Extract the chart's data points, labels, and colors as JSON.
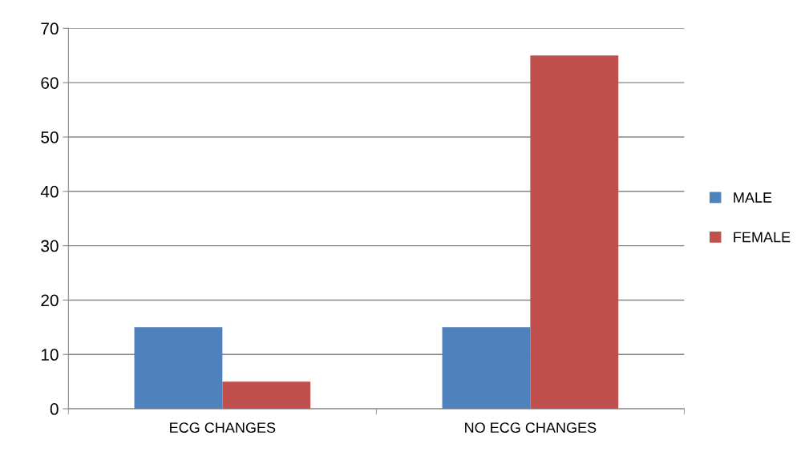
{
  "chart_data": {
    "type": "bar",
    "categories": [
      "ECG CHANGES",
      "NO ECG CHANGES"
    ],
    "series": [
      {
        "name": "MALE",
        "color": "#4f81bd",
        "values": [
          15,
          15
        ]
      },
      {
        "name": "FEMALE",
        "color": "#c0504d",
        "values": [
          5,
          65
        ]
      }
    ],
    "ylim": [
      0,
      70
    ],
    "yticks": [
      0,
      10,
      20,
      30,
      40,
      50,
      60,
      70
    ],
    "grid": "y",
    "legend": "right"
  }
}
